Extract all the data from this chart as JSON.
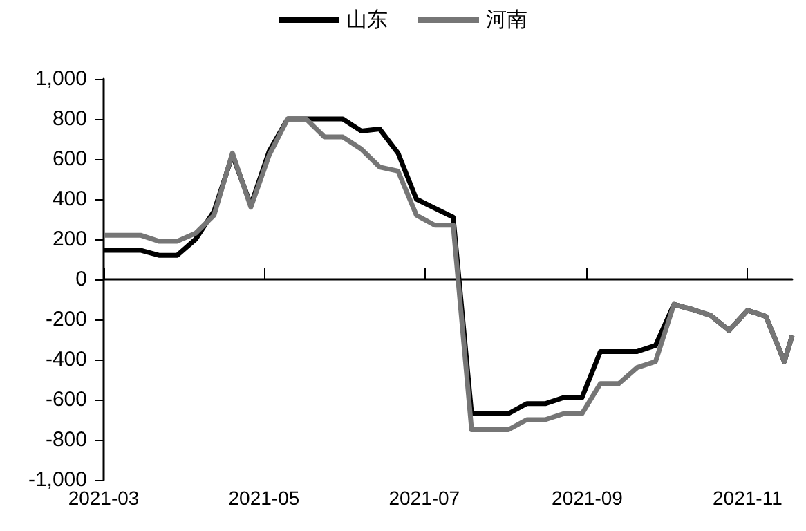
{
  "chart_data": {
    "type": "line",
    "x": [
      "2021-03-01",
      "2021-03-08",
      "2021-03-15",
      "2021-03-22",
      "2021-03-29",
      "2021-04-05",
      "2021-04-12",
      "2021-04-19",
      "2021-04-26",
      "2021-05-03",
      "2021-05-10",
      "2021-05-17",
      "2021-05-24",
      "2021-05-31",
      "2021-06-07",
      "2021-06-14",
      "2021-06-21",
      "2021-06-28",
      "2021-07-05",
      "2021-07-12",
      "2021-07-19",
      "2021-07-26",
      "2021-08-02",
      "2021-08-09",
      "2021-08-16",
      "2021-08-23",
      "2021-08-30",
      "2021-09-06",
      "2021-09-13",
      "2021-09-20",
      "2021-09-27",
      "2021-10-04",
      "2021-10-11",
      "2021-10-18",
      "2021-10-25",
      "2021-11-01",
      "2021-11-08",
      "2021-11-15",
      "2021-11-18"
    ],
    "series": [
      {
        "name": "山东",
        "color": "#000000",
        "values": [
          145,
          145,
          145,
          120,
          120,
          200,
          340,
          620,
          370,
          640,
          800,
          800,
          800,
          800,
          740,
          750,
          630,
          400,
          355,
          310,
          -670,
          -670,
          -670,
          -620,
          -620,
          -590,
          -590,
          -360,
          -360,
          -360,
          -330,
          -125,
          -150,
          -180,
          -255,
          -155,
          -185,
          -410,
          -280
        ]
      },
      {
        "name": "河南",
        "color": "#767676",
        "values": [
          220,
          220,
          220,
          190,
          190,
          230,
          320,
          630,
          360,
          620,
          800,
          800,
          710,
          710,
          650,
          560,
          540,
          320,
          270,
          270,
          -750,
          -750,
          -750,
          -700,
          -700,
          -670,
          -670,
          -520,
          -520,
          -440,
          -410,
          -125,
          -150,
          -180,
          -255,
          -155,
          -185,
          -410,
          -280
        ]
      }
    ],
    "xlim": [
      "2021-03-01",
      "2021-11-18"
    ],
    "xticks": [
      "2021-03",
      "2021-05",
      "2021-07",
      "2021-09",
      "2021-11"
    ],
    "ylim": [
      -1000,
      1000
    ],
    "yticks": [
      {
        "value": -1000,
        "label": "-1,000"
      },
      -800,
      -600,
      -400,
      -200,
      0,
      200,
      400,
      600,
      800,
      {
        "value": 1000,
        "label": "1,000"
      }
    ],
    "legend": "top",
    "marker": "none",
    "line_style": "solid"
  }
}
